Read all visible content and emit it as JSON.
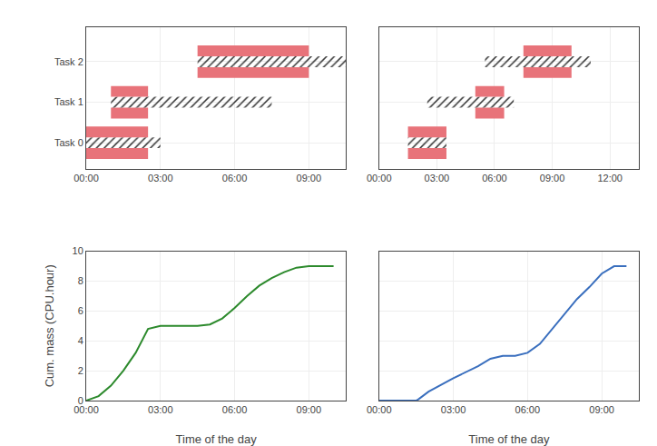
{
  "chart_data": [
    {
      "type": "bar",
      "orientation": "horizontal",
      "grid": true,
      "categories": [
        "Task 0",
        "Task 1",
        "Task 2"
      ],
      "ylim": [
        -0.65,
        2.85
      ],
      "xlim": [
        0,
        10.5
      ],
      "xticks": [
        {
          "value": 0,
          "label": "00:00"
        },
        {
          "value": 3,
          "label": "03:00"
        },
        {
          "value": 6,
          "label": "06:00"
        },
        {
          "value": 9,
          "label": "09:00"
        }
      ],
      "series": [
        {
          "color": "#e8737a",
          "start": [
            0.0,
            1.0,
            4.5
          ],
          "values": [
            2.5,
            1.5,
            4.5
          ]
        },
        {
          "color": "#98e898",
          "marker": "hatch",
          "start": [
            0.0,
            1.0,
            4.5
          ],
          "values": [
            3.0,
            6.5,
            6.0
          ]
        },
        {
          "color": "#e8737a",
          "start": [
            0.0,
            1.0,
            4.5
          ],
          "values": [
            2.5,
            1.5,
            4.5
          ]
        }
      ]
    },
    {
      "type": "bar",
      "orientation": "horizontal",
      "grid": true,
      "tick_labels": "x",
      "categories": [
        null,
        null,
        null
      ],
      "ylim": [
        -0.65,
        2.85
      ],
      "xlim": [
        0,
        13.5
      ],
      "xticks": [
        {
          "value": 0,
          "label": "00:00"
        },
        {
          "value": 3,
          "label": "03:00"
        },
        {
          "value": 6,
          "label": "06:00"
        },
        {
          "value": 9,
          "label": "09:00"
        },
        {
          "value": 12,
          "label": "12:00"
        }
      ],
      "series": [
        {
          "color": "#e8737a",
          "start": [
            1.5,
            5.0,
            7.5
          ],
          "values": [
            2.0,
            1.5,
            2.5
          ]
        },
        {
          "color": "#98e898",
          "marker": "hatch",
          "start": [
            1.5,
            2.5,
            5.5
          ],
          "values": [
            2.0,
            4.5,
            5.5
          ]
        },
        {
          "color": "#e8737a",
          "start": [
            1.5,
            5.0,
            7.5
          ],
          "values": [
            2.0,
            1.5,
            2.5
          ]
        }
      ]
    },
    {
      "type": "line",
      "grid": true,
      "xlabel": "Time of the day",
      "ylabel": "Cum. mass (CPU.hour)",
      "x": [
        0.0,
        0.5,
        1.0,
        1.5,
        2.0,
        2.5,
        3.0,
        3.5,
        4.0,
        4.5,
        5.0,
        5.5,
        6.0,
        6.5,
        7.0,
        7.5,
        8.0,
        8.5,
        9.0,
        9.5,
        10.0
      ],
      "xlim": [
        0,
        10.5
      ],
      "xticks": [
        {
          "value": 0,
          "label": "00:00"
        },
        {
          "value": 3,
          "label": "03:00"
        },
        {
          "value": 6,
          "label": "06:00"
        },
        {
          "value": 9,
          "label": "09:00"
        }
      ],
      "ylim": [
        0,
        10
      ],
      "yticks": [
        0,
        2,
        4,
        6,
        8,
        10
      ],
      "annotations": [
        {
          "text": "10",
          "y": 10.2
        }
      ],
      "series": [
        {
          "color": "#2d8a2d",
          "values": [
            0.0,
            0.3,
            1.0,
            2.0,
            3.2,
            4.8,
            5.0,
            5.0,
            5.0,
            5.0,
            5.1,
            5.5,
            6.2,
            7.0,
            7.7,
            8.2,
            8.6,
            8.9,
            9.0,
            9.0,
            9.0
          ]
        }
      ]
    },
    {
      "type": "line",
      "grid": true,
      "tick_labels": "x",
      "xlabel": "Time of the day",
      "x": [
        0.0,
        1.5,
        1.6,
        2.0,
        3.0,
        4.0,
        4.5,
        5.0,
        5.5,
        6.0,
        6.5,
        7.0,
        7.5,
        8.0,
        8.5,
        9.0,
        9.5,
        10.0
      ],
      "xlim": [
        0,
        10.5
      ],
      "xticks": [
        {
          "value": 0,
          "label": "00:00"
        },
        {
          "value": 3,
          "label": "03:00"
        },
        {
          "value": 6,
          "label": "06:00"
        },
        {
          "value": 9,
          "label": "09:00"
        }
      ],
      "ylim": [
        0,
        10
      ],
      "yticks": [
        0,
        2,
        4,
        6,
        8,
        10
      ],
      "series": [
        {
          "color": "#3a6fbe",
          "values": [
            0.0,
            0.0,
            0.1,
            0.6,
            1.5,
            2.3,
            2.8,
            3.0,
            3.0,
            3.2,
            3.8,
            4.8,
            5.8,
            6.8,
            7.6,
            8.5,
            9.0,
            9.0
          ]
        }
      ]
    }
  ]
}
